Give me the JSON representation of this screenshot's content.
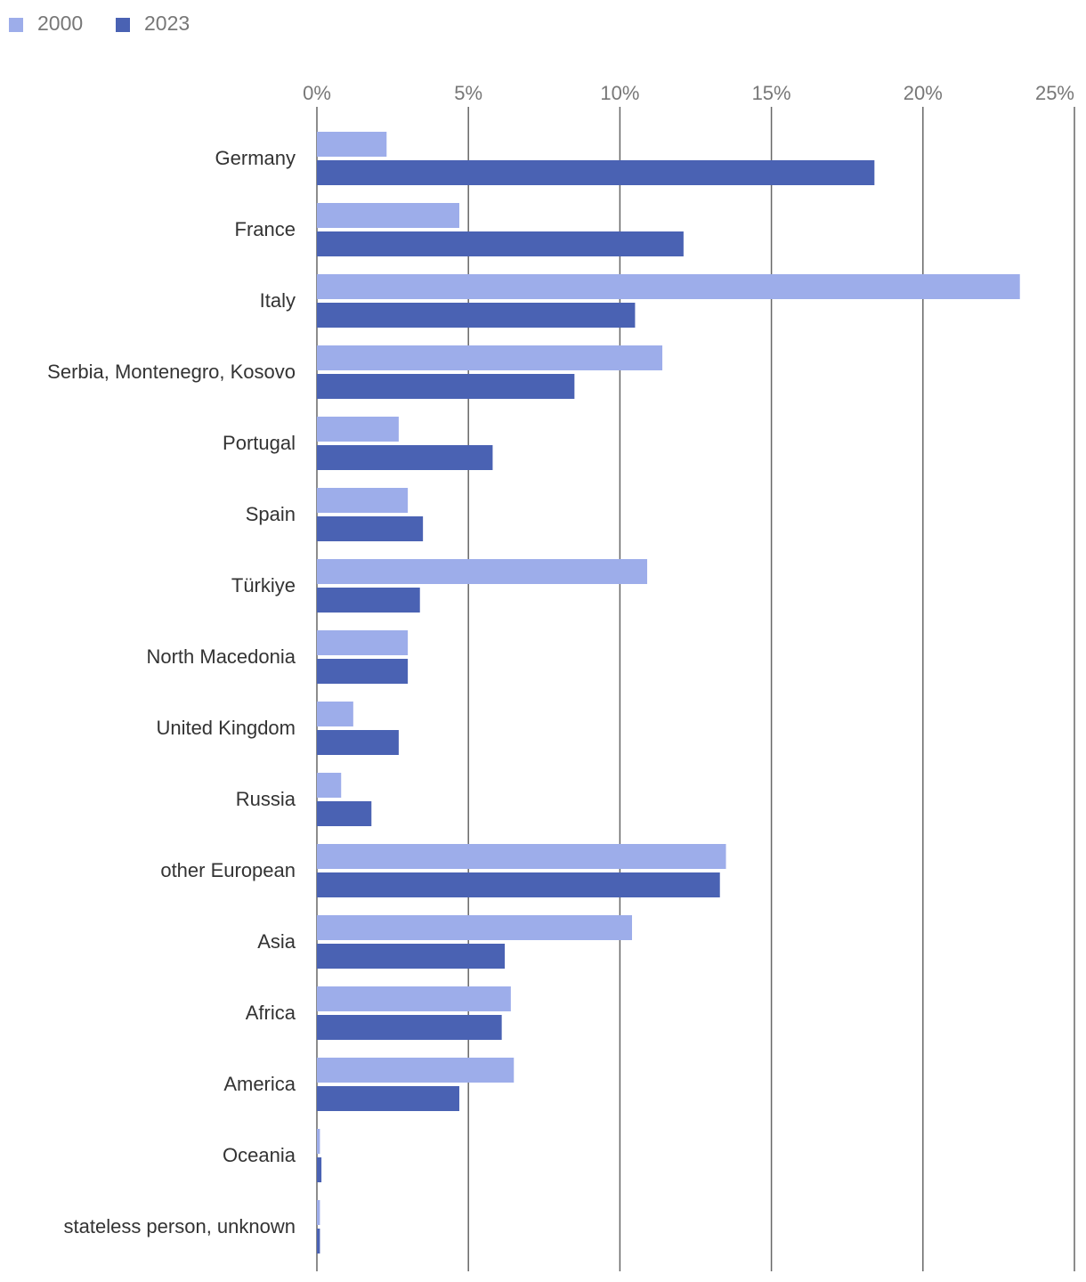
{
  "colors": {
    "series_2000": "#9dadea",
    "series_2023": "#4a62b3",
    "grid": "#666666",
    "tick_text": "#777777",
    "category_text": "#333333"
  },
  "chart_data": {
    "type": "bar",
    "orientation": "horizontal",
    "title": "",
    "xlabel": "",
    "ylabel": "",
    "xlim": [
      0,
      25
    ],
    "xticks": [
      0,
      5,
      10,
      15,
      20,
      25
    ],
    "xtick_labels": [
      "0%",
      "5%",
      "10%",
      "15%",
      "20%",
      "25%"
    ],
    "grid": true,
    "legend_position": "top-left",
    "categories": [
      "Germany",
      "France",
      "Italy",
      "Serbia, Montenegro, Kosovo",
      "Portugal",
      "Spain",
      "Türkiye",
      "North Macedonia",
      "United Kingdom",
      "Russia",
      "other European",
      "Asia",
      "Africa",
      "America",
      "Oceania",
      "stateless person, unknown"
    ],
    "series": [
      {
        "name": "2000",
        "color": "#9dadea",
        "values": [
          2.3,
          4.7,
          23.2,
          11.4,
          2.7,
          3.0,
          10.9,
          3.0,
          1.2,
          0.8,
          13.5,
          10.4,
          6.4,
          6.5,
          0.1,
          0.1
        ]
      },
      {
        "name": "2023",
        "color": "#4a62b3",
        "values": [
          18.4,
          12.1,
          10.5,
          8.5,
          5.8,
          3.5,
          3.4,
          3.0,
          2.7,
          1.8,
          13.3,
          6.2,
          6.1,
          4.7,
          0.15,
          0.1
        ]
      }
    ]
  }
}
